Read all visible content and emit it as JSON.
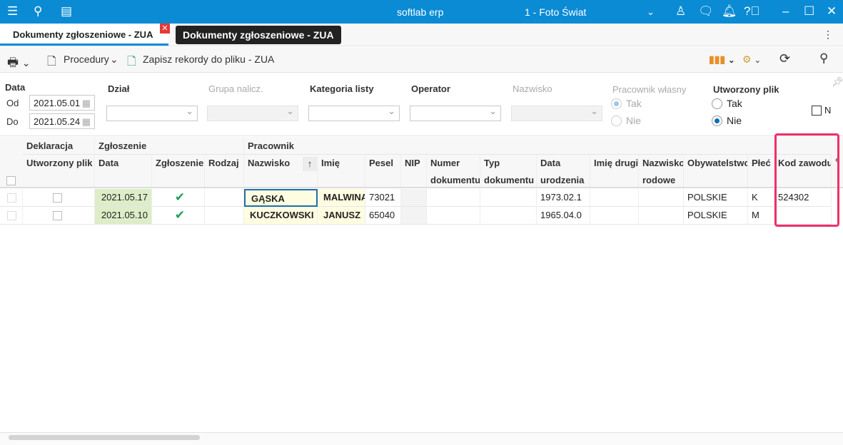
{
  "titlebar": {
    "app": "softlab erp",
    "company": "1 - Foto Świat"
  },
  "tab": {
    "label": "Dokumenty zgłoszeniowe - ZUA",
    "tooltip": "Dokumenty zgłoszeniowe - ZUA"
  },
  "toolbar": {
    "procedures": "Procedury",
    "save_records": "Zapisz rekordy do pliku - ZUA"
  },
  "filters": {
    "date_label": "Data",
    "from_label": "Od",
    "from_value": "2021.05.01",
    "to_label": "Do",
    "to_value": "2021.05.24",
    "dzial": "Dział",
    "grupa": "Grupa nalicz.",
    "kategoria": "Kategoria listy",
    "operator": "Operator",
    "nazwisko": "Nazwisko",
    "pracownik_wlasny": {
      "label": "Pracownik własny",
      "options": [
        "Tak",
        "Nie"
      ],
      "selected": "Tak"
    },
    "utworzony_plik": {
      "label": "Utworzony plik",
      "options": [
        "Tak",
        "Nie"
      ],
      "selected": "Nie"
    },
    "extra_checkbox": "N"
  },
  "grid": {
    "groups": [
      "Deklaracja",
      "Zgłoszenie",
      "Pracownik"
    ],
    "columns": [
      [
        "Utworzony plik",
        ""
      ],
      [
        "Data",
        ""
      ],
      [
        "Zgłoszenie",
        ""
      ],
      [
        "Rodzaj",
        ""
      ],
      [
        "Nazwisko",
        ""
      ],
      [
        "Imię",
        ""
      ],
      [
        "Pesel",
        ""
      ],
      [
        "NIP",
        ""
      ],
      [
        "Numer",
        "dokumentu"
      ],
      [
        "Typ",
        "dokumentu"
      ],
      [
        "Data",
        "urodzenia"
      ],
      [
        "Imię drugie",
        ""
      ],
      [
        "Nazwisko",
        "rodowe"
      ],
      [
        "Obywatelstwo",
        ""
      ],
      [
        "Płeć",
        ""
      ],
      [
        "Kod zawodu",
        ""
      ]
    ],
    "rows": [
      [
        "",
        "2021.05.17",
        "✔",
        "",
        "GĄSKA",
        "MALWINA",
        "73021",
        "",
        "",
        "",
        "1973.02.1",
        "",
        "",
        "POLSKIE",
        "K",
        "524302"
      ],
      [
        "",
        "2021.05.10",
        "✔",
        "",
        "KUCZKOWSKI",
        "JANUSZ",
        "65040",
        "",
        "",
        "",
        "1965.04.0",
        "",
        "",
        "POLSKIE",
        "M",
        ""
      ]
    ],
    "sort": "Nazwisko ascending"
  },
  "colors": {
    "accent": "#0a8bd4",
    "highlight": "#f0306a",
    "date_cell": "#dcedc8",
    "name_cell": "#fffde1",
    "check": "#1f9d55"
  }
}
